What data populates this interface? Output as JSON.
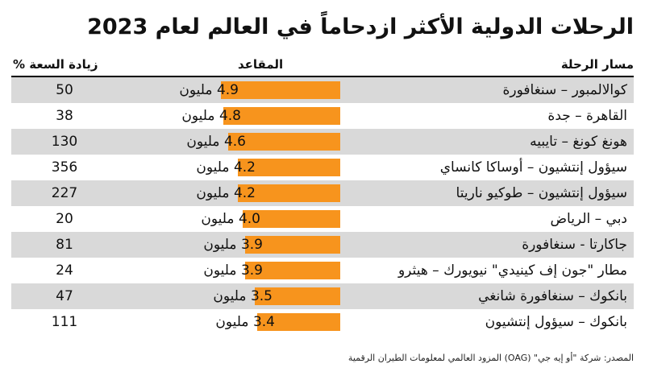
{
  "title": "الرحلات الدولية الأكثر ازدحاماً في العالم لعام 2023",
  "headers": {
    "route": "مسار الرحلة",
    "seats": "المقاعد",
    "growth": "زيادة السعة %"
  },
  "source": "المصدر: شركة \"أو إيه جي\" (OAG) المزود العالمي لمعلومات الطيران الرقمية",
  "colors": {
    "bar": "#f7941d",
    "shade": "#d9d9d9"
  },
  "chart_data": {
    "type": "bar",
    "orientation": "horizontal",
    "title": "الرحلات الدولية الأكثر ازدحاماً في العالم لعام 2023",
    "unit_label": "مليون",
    "categories": [
      "كوالالمبور – سنغافورة",
      "القاهرة – جدة",
      "هونغ كونغ – تايبيه",
      "سيؤول إنتشيون – أوساكا كانساي",
      "سيؤول إنتشيون – طوكيو ناريتا",
      "دبي – الرياض",
      "جاكارتا - سنغافورة",
      "مطار \"جون إف كينيدي\" نيويورك – هيثرو",
      "بانكوك – سنغافورة شانغي",
      "بانكوك – سيؤول إنتشيون"
    ],
    "series": [
      {
        "name": "المقاعد",
        "values": [
          4.9,
          4.8,
          4.6,
          4.2,
          4.2,
          4.0,
          3.9,
          3.9,
          3.5,
          3.4
        ]
      },
      {
        "name": "زيادة السعة %",
        "values": [
          50,
          38,
          130,
          356,
          227,
          20,
          81,
          24,
          47,
          111
        ]
      }
    ],
    "bar_labels": [
      "4.9 مليون",
      "4.8 مليون",
      "4.6 مليون",
      "4.2 مليون",
      "4.2 مليون",
      "4.0 مليون",
      "3.9 مليون",
      "3.9 مليون",
      "3.5 مليون",
      "3.4 مليون"
    ],
    "growth_labels": [
      "50",
      "38",
      "130",
      "356",
      "227",
      "20",
      "81",
      "24",
      "47",
      "111"
    ],
    "xlim": [
      0,
      4.9
    ]
  }
}
